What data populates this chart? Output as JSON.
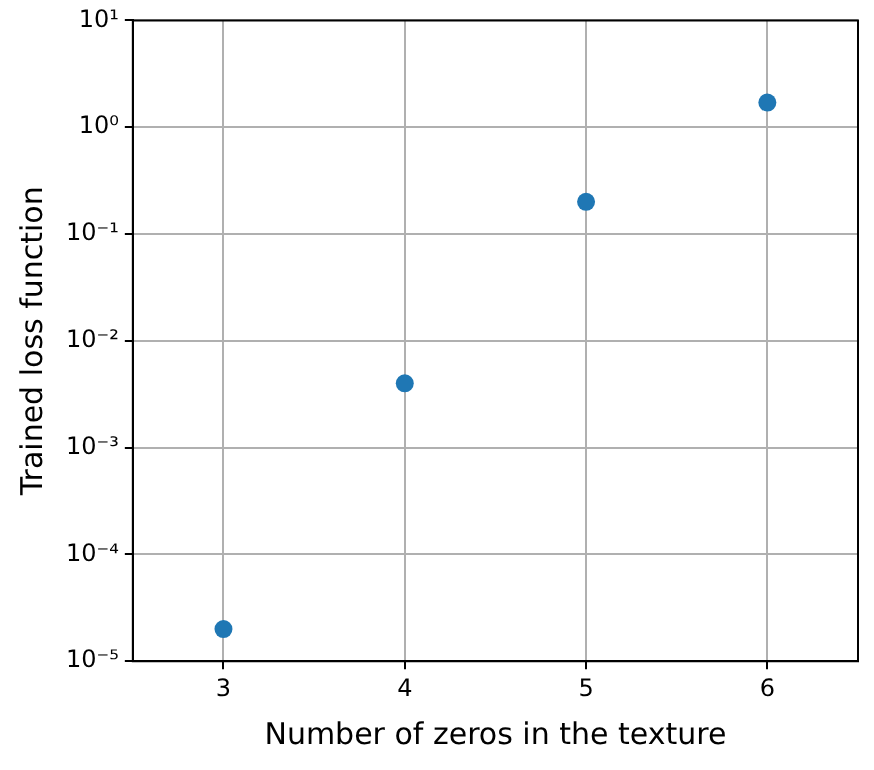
{
  "chart_data": {
    "type": "scatter",
    "xlabel": "Number of zeros in the texture",
    "ylabel": "Trained loss function",
    "x": [
      3,
      4,
      5,
      6
    ],
    "series": [
      {
        "color": "#1f77b4",
        "values": [
          2e-05,
          0.004,
          0.2,
          1.7
        ]
      }
    ],
    "xlim": [
      2.5,
      6.5
    ],
    "xticks": [
      3,
      4,
      5,
      6
    ],
    "ylim": [
      1e-05,
      10
    ],
    "yticks": [
      {
        "value": 1e-05,
        "label": "10⁻⁵"
      },
      {
        "value": 0.0001,
        "label": "10⁻⁴"
      },
      {
        "value": 0.001,
        "label": "10⁻³"
      },
      {
        "value": 0.01,
        "label": "10⁻²"
      },
      {
        "value": 0.1,
        "label": "10⁻¹"
      },
      {
        "value": 1,
        "label": "10⁰"
      },
      {
        "value": 10,
        "label": "10¹"
      }
    ],
    "log": "y",
    "grid": true,
    "marker": "circle",
    "legend": false
  }
}
